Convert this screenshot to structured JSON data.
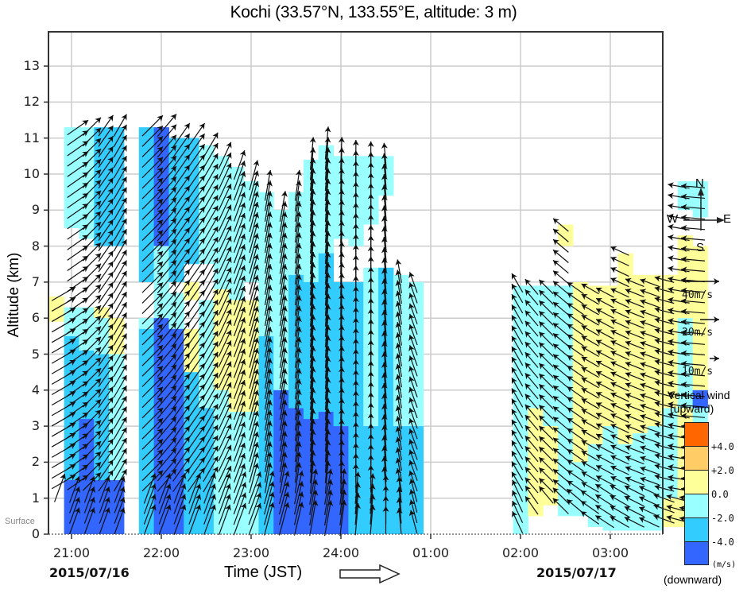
{
  "title": "Kochi (33.57°N, 133.55°E, altitude: 3 m)",
  "chart_data": {
    "type": "heatmap",
    "title": "Kochi (33.57°N, 133.55°E, altitude: 3 m)",
    "xlabel": "Time (JST)",
    "ylabel": "Altitude (km)",
    "ylim": [
      0,
      13.9
    ],
    "yticks": [
      "0",
      "1",
      "2",
      "3",
      "4",
      "5",
      "6",
      "7",
      "8",
      "9",
      "10",
      "11",
      "12",
      "13"
    ],
    "surface_label": "Surface",
    "xticks": [
      "21:00",
      "22:00",
      "23:00",
      "24:00",
      "01:00",
      "02:00",
      "03:00"
    ],
    "start_date": "2015/07/16",
    "end_date": "2015/07/17",
    "grid": true,
    "time_resolution_min": 10,
    "overlay": "wind vectors (horizontal wind, arrow points downwind)",
    "color_variable": "Vertical wind (m/s)",
    "color_classes": [
      {
        "id": "o",
        "label": "> +4.0",
        "color": "#ff6600"
      },
      {
        "id": "p",
        "label": "+2.0 to +4.0",
        "color": "#ffcc66"
      },
      {
        "id": "y",
        "label": "0.0 to +2.0",
        "color": "#ffff99"
      },
      {
        "id": "c",
        "label": "-2.0 to 0.0",
        "color": "#99ffff"
      },
      {
        "id": "m",
        "label": "-4.0 to -2.0",
        "color": "#33ccff"
      },
      {
        "id": "b",
        "label": "< -4.0",
        "color": "#3366ff"
      }
    ],
    "columns": [
      {
        "t": "20:50",
        "seg": [
          [
            5.9,
            6.6,
            "y"
          ],
          [
            0.9,
            5.9,
            "w"
          ]
        ],
        "dir": 240,
        "spd": 30
      },
      {
        "t": "21:00",
        "seg": [
          [
            8.5,
            11.3,
            "c"
          ],
          [
            5.5,
            6.3,
            "c"
          ],
          [
            3.2,
            5.5,
            "m"
          ],
          [
            1.5,
            3.2,
            "m"
          ],
          [
            0,
            1.5,
            "b"
          ]
        ],
        "dir": 235,
        "spd": 28
      },
      {
        "t": "21:10",
        "seg": [
          [
            8.2,
            11.3,
            "c"
          ],
          [
            5.1,
            6.3,
            "c"
          ],
          [
            3.2,
            5.1,
            "m"
          ],
          [
            0,
            3.2,
            "b"
          ]
        ],
        "dir": 225,
        "spd": 28
      },
      {
        "t": "21:20",
        "seg": [
          [
            8.0,
            11.3,
            "m"
          ],
          [
            6.0,
            6.3,
            "y"
          ],
          [
            5.0,
            6.0,
            "c"
          ],
          [
            1.5,
            5.0,
            "m"
          ],
          [
            0,
            1.5,
            "b"
          ]
        ],
        "dir": 215,
        "spd": 28
      },
      {
        "t": "21:30",
        "seg": [
          [
            8.0,
            11.3,
            "m"
          ],
          [
            5.0,
            6.0,
            "y"
          ],
          [
            1.5,
            5.0,
            "c"
          ],
          [
            0,
            1.5,
            "b"
          ]
        ],
        "dir": 210,
        "spd": 28
      },
      {
        "t": "21:50",
        "seg": [
          [
            11.0,
            11.3,
            "m"
          ],
          [
            7.0,
            11.0,
            "m"
          ],
          [
            5.7,
            6.0,
            "c"
          ],
          [
            0,
            5.7,
            "m"
          ]
        ],
        "dir": 225,
        "spd": 32
      },
      {
        "t": "22:00",
        "seg": [
          [
            8.0,
            11.3,
            "b"
          ],
          [
            6.0,
            8.0,
            "c"
          ],
          [
            0,
            6.0,
            "b"
          ]
        ],
        "dir": 220,
        "spd": 32
      },
      {
        "t": "22:10",
        "seg": [
          [
            7.0,
            11.0,
            "m"
          ],
          [
            5.7,
            6.7,
            "c"
          ],
          [
            0,
            5.7,
            "b"
          ]
        ],
        "dir": 215,
        "spd": 32
      },
      {
        "t": "22:20",
        "seg": [
          [
            7.5,
            11.0,
            "m"
          ],
          [
            6.5,
            7.0,
            "y"
          ],
          [
            4.5,
            5.7,
            "y"
          ],
          [
            0,
            4.5,
            "m"
          ]
        ],
        "dir": 215,
        "spd": 32
      },
      {
        "t": "22:30",
        "seg": [
          [
            7.5,
            10.8,
            "c"
          ],
          [
            3.5,
            6.5,
            "c"
          ],
          [
            0,
            3.5,
            "m"
          ]
        ],
        "dir": 210,
        "spd": 32
      },
      {
        "t": "22:40",
        "seg": [
          [
            6.5,
            10.5,
            "c"
          ],
          [
            4.0,
            6.8,
            "y"
          ],
          [
            0,
            4.0,
            "c"
          ]
        ],
        "dir": 205,
        "spd": 32
      },
      {
        "t": "22:50",
        "seg": [
          [
            6.5,
            10.2,
            "c"
          ],
          [
            3.4,
            6.5,
            "y"
          ],
          [
            0,
            3.4,
            "c"
          ]
        ],
        "dir": 200,
        "spd": 34
      },
      {
        "t": "23:00",
        "seg": [
          [
            7.0,
            9.8,
            "c"
          ],
          [
            3.4,
            6.5,
            "y"
          ],
          [
            0,
            3.4,
            "c"
          ]
        ],
        "dir": 195,
        "spd": 34
      },
      {
        "t": "23:10",
        "seg": [
          [
            7.5,
            9.5,
            "c"
          ],
          [
            5.5,
            7.5,
            "c"
          ],
          [
            0,
            5.5,
            "m"
          ]
        ],
        "dir": 190,
        "spd": 34
      },
      {
        "t": "23:20",
        "seg": [
          [
            7.6,
            9.0,
            "c"
          ],
          [
            4.0,
            7.6,
            "c"
          ],
          [
            0,
            4.0,
            "b"
          ]
        ],
        "dir": 190,
        "spd": 34
      },
      {
        "t": "23:30",
        "seg": [
          [
            7.2,
            9.5,
            "c"
          ],
          [
            3.5,
            7.2,
            "m"
          ],
          [
            0,
            3.5,
            "b"
          ]
        ],
        "dir": 188,
        "spd": 34
      },
      {
        "t": "23:40",
        "seg": [
          [
            7.0,
            10.4,
            "c"
          ],
          [
            3.2,
            7.0,
            "m"
          ],
          [
            0,
            3.2,
            "b"
          ]
        ],
        "dir": 185,
        "spd": 36
      },
      {
        "t": "23:50",
        "seg": [
          [
            7.8,
            10.8,
            "c"
          ],
          [
            3.4,
            7.8,
            "m"
          ],
          [
            0,
            3.4,
            "b"
          ]
        ],
        "dir": 185,
        "spd": 36
      },
      {
        "t": "24:00",
        "seg": [
          [
            8.2,
            10.5,
            "c"
          ],
          [
            3.0,
            7.0,
            "m"
          ],
          [
            0,
            3.0,
            "b"
          ]
        ],
        "dir": 182,
        "spd": 36
      },
      {
        "t": "24:10",
        "seg": [
          [
            8.0,
            10.5,
            "c"
          ],
          [
            2.0,
            7.0,
            "m"
          ],
          [
            0,
            2.0,
            "m"
          ]
        ],
        "dir": 180,
        "spd": 32
      },
      {
        "t": "24:20",
        "seg": [
          [
            8.6,
            10.5,
            "c"
          ],
          [
            3.0,
            7.4,
            "c"
          ],
          [
            1.0,
            3.0,
            "m"
          ],
          [
            0,
            1.0,
            "m"
          ]
        ],
        "dir": 180,
        "spd": 30
      },
      {
        "t": "24:30",
        "seg": [
          [
            9.4,
            10.5,
            "c"
          ],
          [
            0,
            7.4,
            "m"
          ]
        ],
        "dir": 175,
        "spd": 28
      },
      {
        "t": "24:40",
        "seg": [
          [
            3.0,
            7.2,
            "c"
          ],
          [
            0,
            3.0,
            "m"
          ]
        ],
        "dir": 170,
        "spd": 26
      },
      {
        "t": "24:50",
        "seg": [
          [
            3.0,
            7.0,
            "c"
          ],
          [
            0,
            3.0,
            "m"
          ]
        ],
        "dir": 160,
        "spd": 24
      },
      {
        "t": "01:00",
        "seg": [
          [
            2.0,
            6.9,
            "c"
          ],
          [
            0,
            2.0,
            "c"
          ]
        ],
        "dir": 150,
        "spd": 24
      },
      {
        "t": "01:10",
        "seg": [
          [
            3.5,
            6.9,
            "c"
          ],
          [
            0.5,
            3.5,
            "y"
          ]
        ],
        "dir": 140,
        "spd": 22
      },
      {
        "t": "01:20",
        "seg": [
          [
            3.0,
            6.9,
            "c"
          ],
          [
            0.8,
            3.0,
            "y"
          ]
        ],
        "dir": 135,
        "spd": 22
      },
      {
        "t": "01:30",
        "seg": [
          [
            8.0,
            8.6,
            "y"
          ],
          [
            5.0,
            6.9,
            "c"
          ],
          [
            0.5,
            5.0,
            "c"
          ]
        ],
        "dir": 130,
        "spd": 22
      },
      {
        "t": "01:40",
        "seg": [
          [
            2.0,
            7.0,
            "y"
          ],
          [
            0.5,
            2.0,
            "c"
          ]
        ],
        "dir": 125,
        "spd": 22
      },
      {
        "t": "01:50",
        "seg": [
          [
            2.5,
            6.9,
            "y"
          ],
          [
            0.2,
            2.5,
            "c"
          ]
        ],
        "dir": 120,
        "spd": 22
      },
      {
        "t": "02:00",
        "seg": [
          [
            3.0,
            6.9,
            "y"
          ],
          [
            0.1,
            3.0,
            "c"
          ]
        ],
        "dir": 118,
        "spd": 22
      },
      {
        "t": "02:10",
        "seg": [
          [
            2.5,
            7.8,
            "y"
          ],
          [
            0.1,
            2.5,
            "c"
          ]
        ],
        "dir": 115,
        "spd": 22
      },
      {
        "t": "02:20",
        "seg": [
          [
            2.8,
            7.2,
            "y"
          ],
          [
            0.1,
            2.8,
            "c"
          ]
        ],
        "dir": 112,
        "spd": 22
      },
      {
        "t": "02:30",
        "seg": [
          [
            3.0,
            7.2,
            "y"
          ],
          [
            0.1,
            3.0,
            "c"
          ]
        ],
        "dir": 110,
        "spd": 22
      },
      {
        "t": "02:40",
        "seg": [
          [
            3.5,
            7.2,
            "y"
          ],
          [
            1.0,
            3.5,
            "c"
          ],
          [
            0.2,
            1.0,
            "y"
          ]
        ],
        "dir": 105,
        "spd": 22
      },
      {
        "t": "02:50",
        "seg": [
          [
            9.0,
            9.8,
            "c"
          ],
          [
            6.0,
            8.3,
            "y"
          ],
          [
            3.5,
            6.0,
            "c"
          ],
          [
            0.2,
            3.5,
            "y"
          ]
        ],
        "dir": 100,
        "spd": 24
      },
      {
        "t": "03:00",
        "seg": [
          [
            8.8,
            9.8,
            "c"
          ],
          [
            4.0,
            8.0,
            "y"
          ],
          [
            3.5,
            4.0,
            "b"
          ],
          [
            0.8,
            3.5,
            "c"
          ],
          [
            0.2,
            0.8,
            "y"
          ]
        ],
        "dir": 95,
        "spd": 26
      }
    ]
  },
  "axes": {
    "ylabel": "Altitude (km)",
    "xlabel": "Time (JST)",
    "surface": "Surface"
  },
  "legend": {
    "compass": {
      "n": "N",
      "s": "S",
      "w": "W",
      "e": "E"
    },
    "speeds": [
      {
        "label": "40m/s",
        "len": 46
      },
      {
        "label": "20m/s",
        "len": 24
      },
      {
        "label": "10m/s",
        "len": 12
      }
    ],
    "vertical_wind": {
      "title1": "Vertical wind",
      "title2": "(upward)",
      "ticks": [
        "+4.0",
        "+2.0",
        "0.0",
        "-2.0",
        "-4.0"
      ],
      "unit": "(m/s)",
      "bottom": "(downward)",
      "colors": [
        "#ff6600",
        "#ffcc66",
        "#ffff99",
        "#99ffff",
        "#33ccff",
        "#3366ff"
      ]
    }
  }
}
